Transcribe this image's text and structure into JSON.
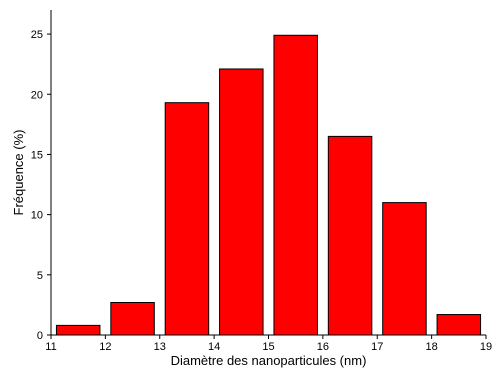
{
  "chart_data": {
    "type": "bar",
    "xlabel": "Diamètre des nanoparticules (nm)",
    "ylabel": "Fréquence (%)",
    "x_ticks": [
      11,
      12,
      13,
      14,
      15,
      16,
      17,
      18,
      19
    ],
    "y_ticks": [
      0,
      5,
      10,
      15,
      20,
      25
    ],
    "xlim": [
      11,
      19
    ],
    "ylim": [
      0,
      27
    ],
    "bar_color": "#ff0000",
    "bars": [
      {
        "x0": 11.1,
        "x1": 11.9,
        "value": 0.8
      },
      {
        "x0": 12.1,
        "x1": 12.9,
        "value": 2.7
      },
      {
        "x0": 13.1,
        "x1": 13.9,
        "value": 19.3
      },
      {
        "x0": 14.1,
        "x1": 14.9,
        "value": 22.1
      },
      {
        "x0": 15.1,
        "x1": 15.9,
        "value": 24.9
      },
      {
        "x0": 16.1,
        "x1": 16.9,
        "value": 16.5
      },
      {
        "x0": 17.1,
        "x1": 17.9,
        "value": 11.0
      },
      {
        "x0": 18.1,
        "x1": 18.9,
        "value": 1.7
      }
    ],
    "grid": false,
    "legend": "none"
  }
}
